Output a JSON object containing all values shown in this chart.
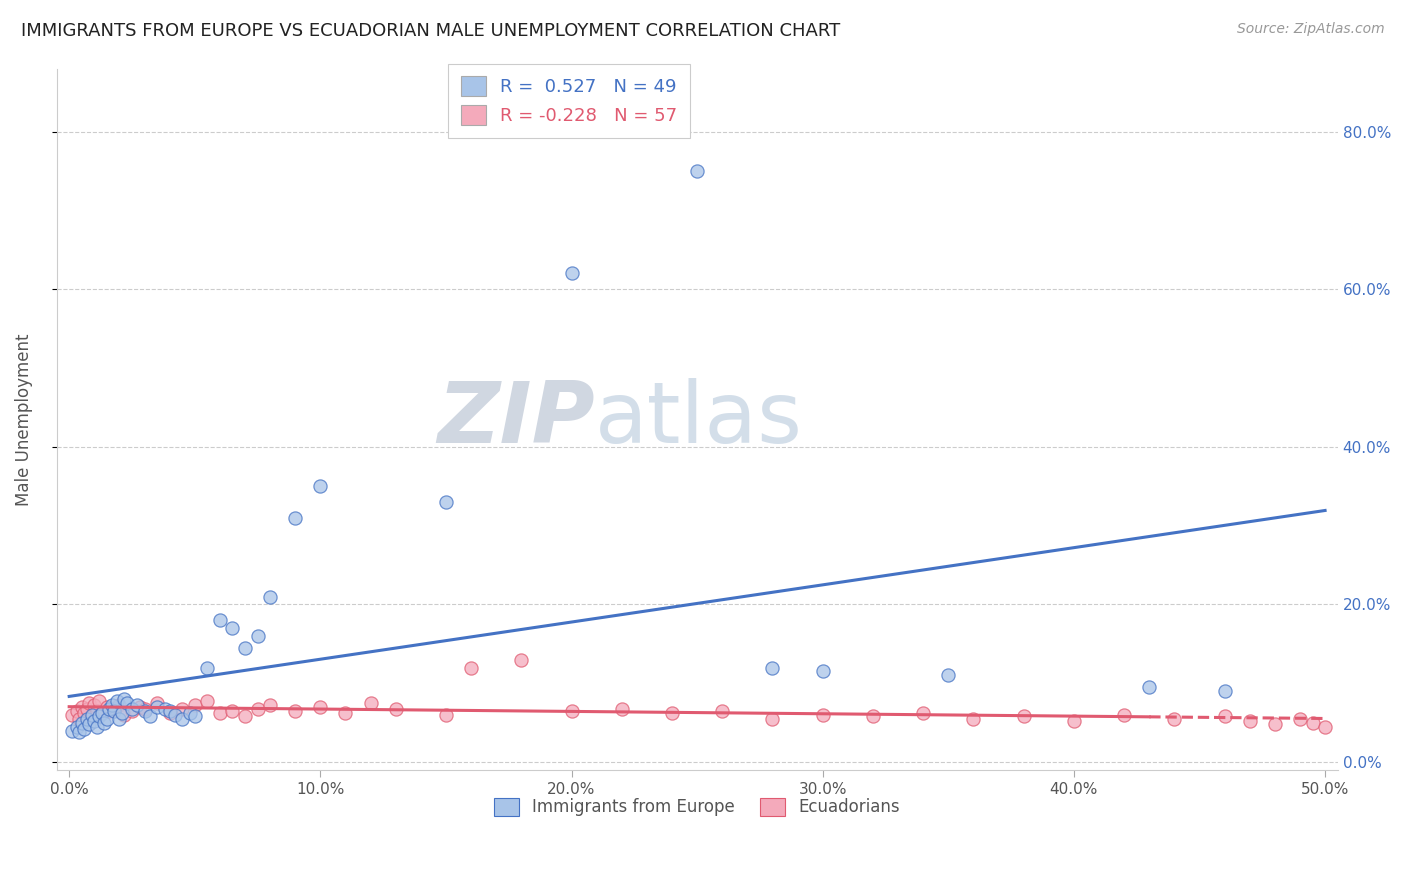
{
  "title": "IMMIGRANTS FROM EUROPE VS ECUADORIAN MALE UNEMPLOYMENT CORRELATION CHART",
  "source": "Source: ZipAtlas.com",
  "ylabel": "Male Unemployment",
  "xlabel": "",
  "xlim": [
    -0.005,
    0.505
  ],
  "ylim": [
    -0.01,
    0.88
  ],
  "xticks": [
    0.0,
    0.1,
    0.2,
    0.3,
    0.4,
    0.5
  ],
  "xtick_labels": [
    "0.0%",
    "10.0%",
    "20.0%",
    "30.0%",
    "40.0%",
    "50.0%"
  ],
  "yticks": [
    0.0,
    0.2,
    0.4,
    0.6,
    0.8
  ],
  "ytick_labels_left": [
    "",
    "20.0%",
    "40.0%",
    "60.0%",
    "80.0%"
  ],
  "ytick_labels_right": [
    "0.0%",
    "20.0%",
    "40.0%",
    "60.0%",
    "80.0%"
  ],
  "blue_R": 0.527,
  "blue_N": 49,
  "pink_R": -0.228,
  "pink_N": 57,
  "blue_color": "#a8c4e8",
  "pink_color": "#f4aabb",
  "blue_line_color": "#4472c4",
  "pink_line_color": "#e05a70",
  "watermark_zip": "ZIP",
  "watermark_atlas": "atlas",
  "legend_label_blue": "Immigrants from Europe",
  "legend_label_pink": "Ecuadorians",
  "blue_scatter_x": [
    0.001,
    0.003,
    0.004,
    0.005,
    0.006,
    0.007,
    0.008,
    0.009,
    0.01,
    0.011,
    0.012,
    0.013,
    0.014,
    0.015,
    0.016,
    0.017,
    0.018,
    0.019,
    0.02,
    0.021,
    0.022,
    0.023,
    0.025,
    0.027,
    0.03,
    0.032,
    0.035,
    0.038,
    0.04,
    0.042,
    0.045,
    0.048,
    0.05,
    0.055,
    0.06,
    0.065,
    0.07,
    0.075,
    0.08,
    0.09,
    0.1,
    0.15,
    0.2,
    0.25,
    0.28,
    0.3,
    0.35,
    0.43,
    0.46
  ],
  "blue_scatter_y": [
    0.04,
    0.045,
    0.038,
    0.05,
    0.042,
    0.055,
    0.048,
    0.06,
    0.052,
    0.045,
    0.058,
    0.062,
    0.05,
    0.055,
    0.068,
    0.072,
    0.065,
    0.078,
    0.055,
    0.062,
    0.08,
    0.075,
    0.068,
    0.072,
    0.065,
    0.058,
    0.07,
    0.068,
    0.065,
    0.06,
    0.055,
    0.062,
    0.058,
    0.12,
    0.18,
    0.17,
    0.145,
    0.16,
    0.21,
    0.31,
    0.35,
    0.33,
    0.62,
    0.75,
    0.12,
    0.115,
    0.11,
    0.095,
    0.09
  ],
  "pink_scatter_x": [
    0.001,
    0.003,
    0.004,
    0.005,
    0.006,
    0.007,
    0.008,
    0.009,
    0.01,
    0.011,
    0.012,
    0.013,
    0.015,
    0.016,
    0.018,
    0.02,
    0.022,
    0.025,
    0.028,
    0.03,
    0.035,
    0.04,
    0.045,
    0.05,
    0.055,
    0.06,
    0.065,
    0.07,
    0.075,
    0.08,
    0.09,
    0.1,
    0.11,
    0.12,
    0.13,
    0.15,
    0.16,
    0.18,
    0.2,
    0.22,
    0.24,
    0.26,
    0.28,
    0.3,
    0.32,
    0.34,
    0.36,
    0.38,
    0.4,
    0.42,
    0.44,
    0.46,
    0.47,
    0.48,
    0.49,
    0.495,
    0.5
  ],
  "pink_scatter_y": [
    0.06,
    0.065,
    0.055,
    0.07,
    0.062,
    0.068,
    0.075,
    0.058,
    0.072,
    0.065,
    0.078,
    0.062,
    0.07,
    0.065,
    0.068,
    0.072,
    0.06,
    0.065,
    0.07,
    0.068,
    0.075,
    0.062,
    0.068,
    0.072,
    0.078,
    0.062,
    0.065,
    0.058,
    0.068,
    0.072,
    0.065,
    0.07,
    0.062,
    0.075,
    0.068,
    0.06,
    0.12,
    0.13,
    0.065,
    0.068,
    0.062,
    0.065,
    0.055,
    0.06,
    0.058,
    0.062,
    0.055,
    0.058,
    0.052,
    0.06,
    0.055,
    0.058,
    0.052,
    0.048,
    0.055,
    0.05,
    0.045
  ]
}
